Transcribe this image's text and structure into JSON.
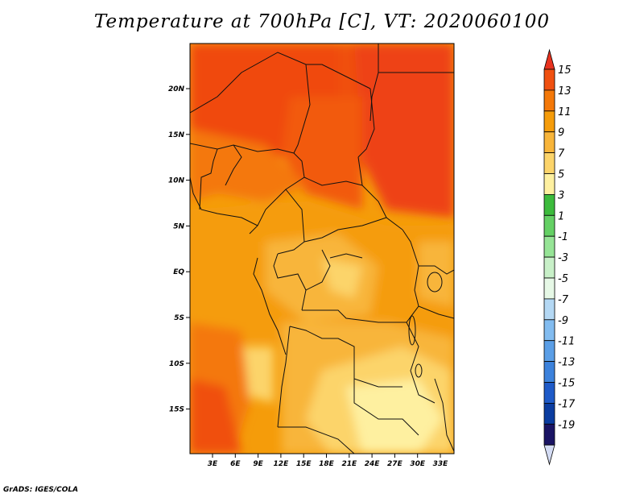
{
  "title": "Temperature at 700hPa [C], VT: 2020060100",
  "credit": "GrADS: IGES/COLA",
  "map": {
    "lat_ticks": [
      "20N",
      "15N",
      "10N",
      "5N",
      "EQ",
      "5S",
      "10S",
      "15S"
    ],
    "lon_ticks": [
      "3E",
      "6E",
      "9E",
      "12E",
      "15E",
      "18E",
      "21E",
      "24E",
      "27E",
      "30E",
      "33E"
    ]
  },
  "colorbar": {
    "levels": [
      "15",
      "13",
      "11",
      "9",
      "7",
      "5",
      "3",
      "1",
      "-1",
      "-3",
      "-5",
      "-7",
      "-9",
      "-11",
      "-13",
      "-15",
      "-17",
      "-19"
    ],
    "colors": [
      "#e8321e",
      "#f05010",
      "#f47808",
      "#f59c0a",
      "#f8b53a",
      "#fcd46a",
      "#fef0a0",
      "#3cbb3c",
      "#64d064",
      "#96e496",
      "#c8f0c8",
      "#e6f8e6",
      "#b4d8f4",
      "#82bcf0",
      "#5a9ee6",
      "#3c82dc",
      "#1e5ac8",
      "#0a3ca0",
      "#1a1464"
    ],
    "under_color": "#d4dcf4"
  }
}
